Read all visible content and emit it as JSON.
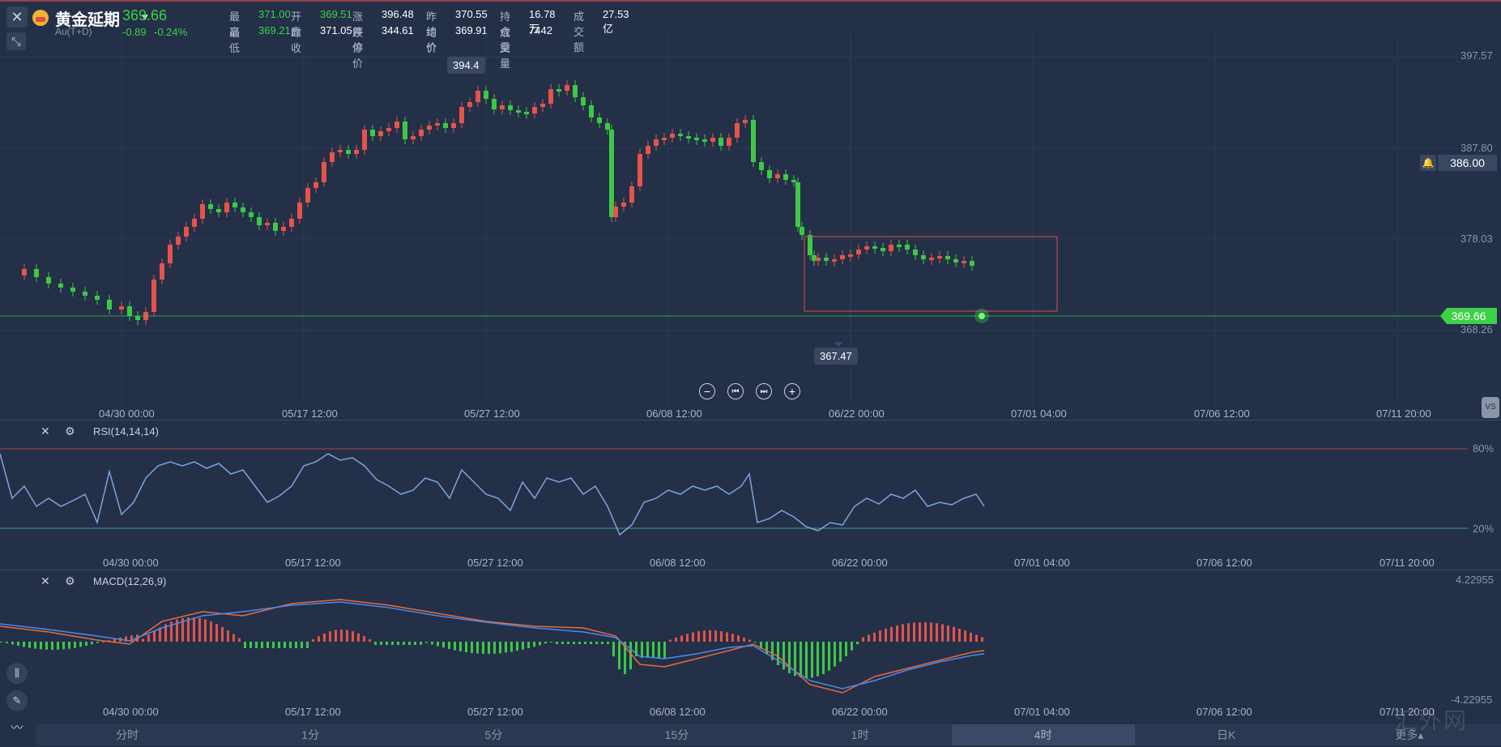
{
  "header": {
    "name": "黄金延期",
    "code": "Au(T+D)",
    "price": "369.66",
    "change": "-0.89",
    "change_pct": "-0.24%",
    "stats_row1": [
      {
        "label": "最高",
        "value": "371.00",
        "color": "green"
      },
      {
        "label": "开盘",
        "value": "369.51",
        "color": "green"
      },
      {
        "label": "涨停价",
        "value": "396.48",
        "color": "white"
      },
      {
        "label": "昨结价",
        "value": "370.55",
        "color": "white"
      },
      {
        "label": "持仓量",
        "value": "16.78万",
        "color": "white"
      },
      {
        "label": "成交额",
        "value": "27.53亿",
        "color": "white"
      }
    ],
    "stats_row2": [
      {
        "label": "最低",
        "value": "369.21",
        "color": "green"
      },
      {
        "label": "昨收",
        "value": "371.05",
        "color": "white"
      },
      {
        "label": "跌停价",
        "value": "344.61",
        "color": "white"
      },
      {
        "label": "均价",
        "value": "369.91",
        "color": "white"
      },
      {
        "label": "成交量",
        "value": "7442",
        "color": "white"
      }
    ]
  },
  "main_chart": {
    "y_labels": [
      "397.57",
      "387.80",
      "378.03",
      "368.26"
    ],
    "alert_price": "386.00",
    "current_price": "369.66",
    "high_marker": "394.4",
    "low_marker": "367.47",
    "x_labels": [
      "04/30 00:00",
      "05/17 12:00",
      "05/27 12:00",
      "06/08 12:00",
      "06/22 00:00",
      "07/01 04:00",
      "07/06 12:00",
      "07/11 20:00"
    ],
    "vs_label": "VS",
    "up_color": "#e5534b",
    "down_color": "#3ec845"
  },
  "rsi": {
    "title": "RSI(14,14,14)",
    "levels": [
      "80%",
      "20%"
    ],
    "x_labels": [
      "04/30 00:00",
      "05/17 12:00",
      "05/27 12:00",
      "06/08 12:00",
      "06/22 00:00",
      "07/01 04:00",
      "07/06 12:00",
      "07/11 20:00"
    ]
  },
  "macd": {
    "title": "MACD(12,26,9)",
    "y_top": "4.22955",
    "y_bottom": "-4.22955",
    "x_labels": [
      "04/30 00:00",
      "05/17 12:00",
      "05/27 12:00",
      "06/08 12:00",
      "06/22 00:00",
      "07/01 04:00",
      "07/06 12:00",
      "07/11 20:00"
    ]
  },
  "tabs": [
    "分时",
    "1分",
    "5分",
    "15分",
    "1时",
    "4时",
    "日K",
    "更多▴"
  ],
  "active_tab": "4时",
  "watermark": "汇外网"
}
